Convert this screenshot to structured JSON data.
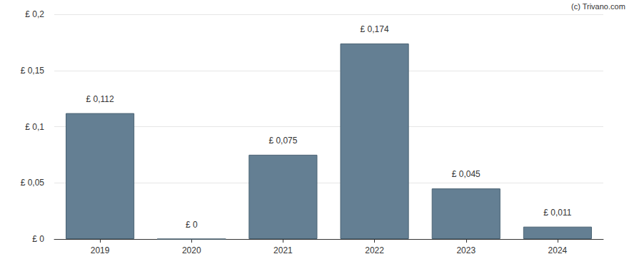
{
  "chart_data": {
    "type": "bar",
    "annotations": [
      "(c) Trivano.com"
    ],
    "categories": [
      "2019",
      "2020",
      "2021",
      "2022",
      "2023",
      "2024"
    ],
    "values": [
      0.112,
      0,
      0.075,
      0.174,
      0.045,
      0.011
    ],
    "value_labels": [
      "£ 0,112",
      "£ 0",
      "£ 0,075",
      "£ 0,174",
      "£ 0,045",
      "£ 0,011"
    ],
    "color": "#647f93",
    "ylim": [
      0,
      0.2
    ],
    "yticks": [
      {
        "value": 0,
        "label": "£ 0"
      },
      {
        "value": 0.05,
        "label": "£ 0,05"
      },
      {
        "value": 0.1,
        "label": "£ 0,1"
      },
      {
        "value": 0.15,
        "label": "£ 0,15"
      },
      {
        "value": 0.2,
        "label": "£ 0,2"
      }
    ],
    "grid": true,
    "data_labels": true
  }
}
